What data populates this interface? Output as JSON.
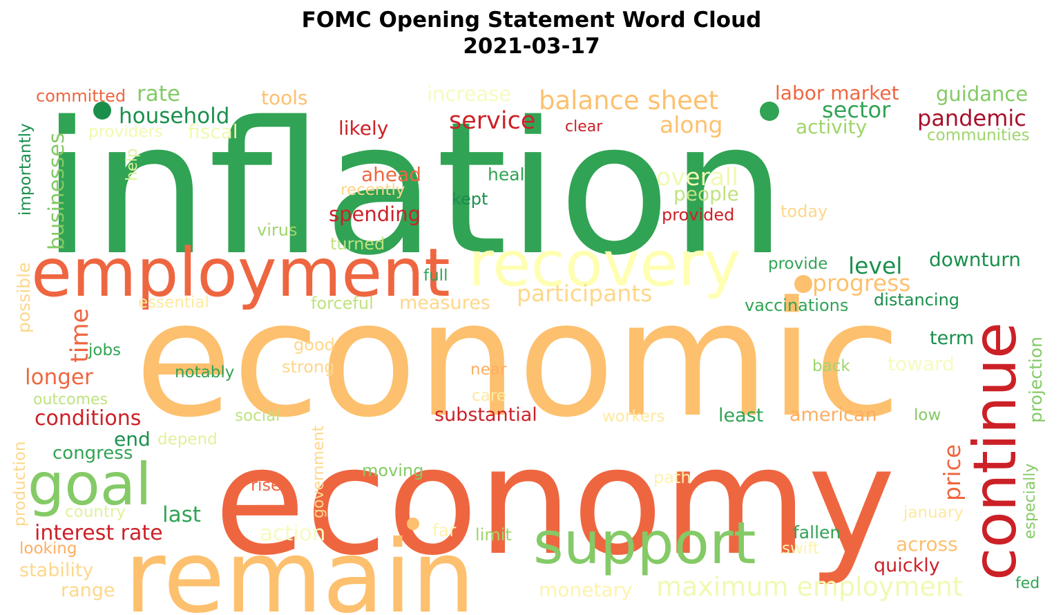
{
  "chart_data": {
    "type": "wordcloud",
    "title": "FOMC Opening Statement Word Cloud",
    "subtitle": "2021-03-17",
    "words": [
      {
        "text": "inflation",
        "color": "#31a354"
      },
      {
        "text": "economic",
        "color": "#fdc06e"
      },
      {
        "text": "economy",
        "color": "#ee6640"
      },
      {
        "text": "remain",
        "color": "#fdc06e"
      },
      {
        "text": "employment",
        "color": "#ee6640"
      },
      {
        "text": "recovery",
        "color": "#ffffb3"
      },
      {
        "text": "continue",
        "color": "#cc2027"
      },
      {
        "text": "support",
        "color": "#84ca66"
      },
      {
        "text": "goal",
        "color": "#84ca66"
      },
      {
        "text": "balance sheet",
        "color": "#fdc06e"
      },
      {
        "text": "maximum employment",
        "color": "#f1f9b1"
      },
      {
        "text": "household",
        "color": "#1a8f4c"
      },
      {
        "text": "pandemic",
        "color": "#a80f2b"
      },
      {
        "text": "service",
        "color": "#cc2027"
      },
      {
        "text": "rate",
        "color": "#84ca66"
      },
      {
        "text": "labor market",
        "color": "#ee6640"
      },
      {
        "text": "guidance",
        "color": "#84ca66"
      },
      {
        "text": "sector",
        "color": "#31a354"
      },
      {
        "text": "activity",
        "color": "#9fd56a"
      },
      {
        "text": "committed",
        "color": "#ee6640"
      },
      {
        "text": "tools",
        "color": "#fdc06e"
      },
      {
        "text": "increase",
        "color": "#f6fbc0"
      },
      {
        "text": "likely",
        "color": "#cc2027"
      },
      {
        "text": "clear",
        "color": "#cc2027"
      },
      {
        "text": "along",
        "color": "#fdc06e"
      },
      {
        "text": "communities",
        "color": "#9fd56a"
      },
      {
        "text": "providers",
        "color": "#f1f9b1"
      },
      {
        "text": "fiscal",
        "color": "#f1f9b1"
      },
      {
        "text": "businesses",
        "color": "#84ca66"
      },
      {
        "text": "importantly",
        "color": "#1a8f4c"
      },
      {
        "text": "help",
        "color": "#e0f29a"
      },
      {
        "text": "ahead",
        "color": "#ee6640"
      },
      {
        "text": "health",
        "color": "#31a354"
      },
      {
        "text": "overall",
        "color": "#f1f9b1"
      },
      {
        "text": "recently",
        "color": "#fdd78a"
      },
      {
        "text": "people",
        "color": "#bfe27f"
      },
      {
        "text": "kept",
        "color": "#1a8f4c"
      },
      {
        "text": "today",
        "color": "#fdd78a"
      },
      {
        "text": "spending",
        "color": "#cc2027"
      },
      {
        "text": "provided",
        "color": "#cc2027"
      },
      {
        "text": "virus",
        "color": "#9fd56a"
      },
      {
        "text": "turned",
        "color": "#bfe27f"
      },
      {
        "text": "level",
        "color": "#1a8f4c"
      },
      {
        "text": "downturn",
        "color": "#1a8f4c"
      },
      {
        "text": "provide",
        "color": "#31a354"
      },
      {
        "text": "progress",
        "color": "#fdc06e"
      },
      {
        "text": "participants",
        "color": "#fdd78a"
      },
      {
        "text": "full",
        "color": "#31a354"
      },
      {
        "text": "possible",
        "color": "#fdd78a"
      },
      {
        "text": "essential",
        "color": "#fee9a0"
      },
      {
        "text": "forceful",
        "color": "#bfe27f"
      },
      {
        "text": "measures",
        "color": "#fdd78a"
      },
      {
        "text": "vaccinations",
        "color": "#31a354"
      },
      {
        "text": "distancing",
        "color": "#1a8f4c"
      },
      {
        "text": "time",
        "color": "#ee6640"
      },
      {
        "text": "term",
        "color": "#1a8f4c"
      },
      {
        "text": "projection",
        "color": "#84ca66"
      },
      {
        "text": "jobs",
        "color": "#31a354"
      },
      {
        "text": "good",
        "color": "#fdd78a"
      },
      {
        "text": "strong",
        "color": "#fdd78a"
      },
      {
        "text": "back",
        "color": "#9fd56a"
      },
      {
        "text": "toward",
        "color": "#f6fbc0"
      },
      {
        "text": "longer",
        "color": "#ee6640"
      },
      {
        "text": "notably",
        "color": "#31a354"
      },
      {
        "text": "near",
        "color": "#fdae61"
      },
      {
        "text": "outcomes",
        "color": "#bfe27f"
      },
      {
        "text": "care",
        "color": "#fee9a0"
      },
      {
        "text": "conditions",
        "color": "#cc2027"
      },
      {
        "text": "social",
        "color": "#bfe27f"
      },
      {
        "text": "substantial",
        "color": "#cc2027"
      },
      {
        "text": "workers",
        "color": "#fee9a0"
      },
      {
        "text": "least",
        "color": "#31a354"
      },
      {
        "text": "american",
        "color": "#fdae61"
      },
      {
        "text": "low",
        "color": "#84ca66"
      },
      {
        "text": "end",
        "color": "#1a8f4c"
      },
      {
        "text": "depend",
        "color": "#e0f29a"
      },
      {
        "text": "price",
        "color": "#ee6640"
      },
      {
        "text": "congress",
        "color": "#31a354"
      },
      {
        "text": "government",
        "color": "#fdd78a"
      },
      {
        "text": "especially",
        "color": "#84ca66"
      },
      {
        "text": "production",
        "color": "#fdd78a"
      },
      {
        "text": "moving",
        "color": "#84ca66"
      },
      {
        "text": "path",
        "color": "#fef3ad"
      },
      {
        "text": "risen",
        "color": "#ee6640"
      },
      {
        "text": "last",
        "color": "#31a354"
      },
      {
        "text": "country",
        "color": "#e0f29a"
      },
      {
        "text": "january",
        "color": "#fee9a0"
      },
      {
        "text": "interest rate",
        "color": "#cc2027"
      },
      {
        "text": "action",
        "color": "#f6fbc0"
      },
      {
        "text": "far",
        "color": "#fef3ad"
      },
      {
        "text": "limit",
        "color": "#9fd56a"
      },
      {
        "text": "fallen",
        "color": "#31a354"
      },
      {
        "text": "looking",
        "color": "#fdae61"
      },
      {
        "text": "swift",
        "color": "#fef3ad"
      },
      {
        "text": "across",
        "color": "#fdc06e"
      },
      {
        "text": "stability",
        "color": "#fdd78a"
      },
      {
        "text": "quickly",
        "color": "#cc2027"
      },
      {
        "text": "fed",
        "color": "#31a354"
      },
      {
        "text": "range",
        "color": "#fdd78a"
      },
      {
        "text": "monetary",
        "color": "#fef3ad"
      }
    ]
  }
}
